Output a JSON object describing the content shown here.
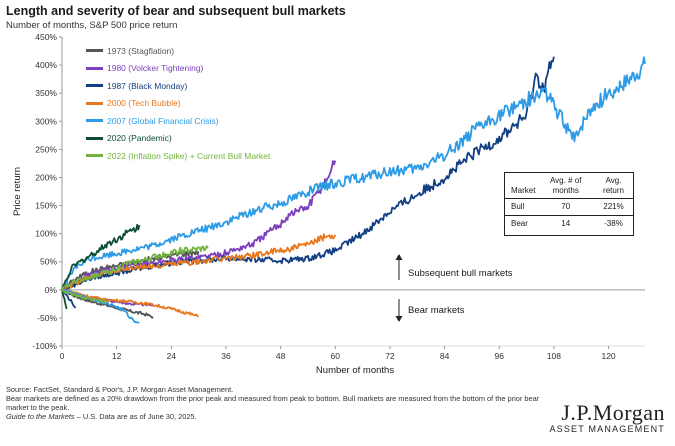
{
  "header": {
    "title": "Length and severity of bear and subsequent bull markets",
    "subtitle": "Number of months, S&P 500 price return"
  },
  "chart_data": {
    "type": "line",
    "title": "Length and severity of bear and subsequent bull markets",
    "xlabel": "Number of months",
    "ylabel": "Price return",
    "xlim": [
      0,
      128
    ],
    "ylim": [
      -100,
      450
    ],
    "xticks": [
      0,
      12,
      24,
      36,
      48,
      60,
      72,
      84,
      96,
      108,
      120
    ],
    "yticks": [
      -100,
      -50,
      0,
      50,
      100,
      150,
      200,
      250,
      300,
      350,
      400,
      450
    ],
    "ytick_labels": [
      "-100%",
      "-50%",
      "0%",
      "50%",
      "100%",
      "150%",
      "200%",
      "250%",
      "300%",
      "350%",
      "400%",
      "450%"
    ],
    "series": [
      {
        "name": "1973 (Stagflation)",
        "color": "#555555",
        "bear": [
          [
            0,
            0
          ],
          [
            3,
            -12
          ],
          [
            6,
            -20
          ],
          [
            9,
            -26
          ],
          [
            12,
            -32
          ],
          [
            15,
            -38
          ],
          [
            18,
            -43
          ],
          [
            20,
            -48
          ]
        ],
        "bull": [
          [
            0,
            0
          ],
          [
            3,
            20
          ],
          [
            6,
            32
          ],
          [
            10,
            40
          ],
          [
            14,
            46
          ],
          [
            18,
            52
          ],
          [
            22,
            58
          ],
          [
            26,
            64
          ],
          [
            30,
            68
          ]
        ]
      },
      {
        "name": "1980 (Volcker Tightening)",
        "color": "#7b3fbf",
        "bear": [
          [
            0,
            0
          ],
          [
            3,
            -8
          ],
          [
            6,
            -14
          ],
          [
            9,
            -18
          ],
          [
            12,
            -21
          ],
          [
            15,
            -25
          ],
          [
            20,
            -27
          ]
        ],
        "bull": [
          [
            0,
            0
          ],
          [
            6,
            28
          ],
          [
            12,
            38
          ],
          [
            18,
            46
          ],
          [
            24,
            52
          ],
          [
            30,
            58
          ],
          [
            36,
            66
          ],
          [
            42,
            82
          ],
          [
            48,
            118
          ],
          [
            50,
            135
          ],
          [
            54,
            148
          ],
          [
            58,
            195
          ],
          [
            60,
            230
          ]
        ]
      },
      {
        "name": "1987 (Black Monday)",
        "color": "#123f82",
        "bear": [
          [
            0,
            0
          ],
          [
            1,
            -10
          ],
          [
            2,
            -20
          ],
          [
            3,
            -32
          ]
        ],
        "bull": [
          [
            0,
            0
          ],
          [
            6,
            20
          ],
          [
            12,
            30
          ],
          [
            18,
            40
          ],
          [
            24,
            48
          ],
          [
            30,
            52
          ],
          [
            36,
            56
          ],
          [
            42,
            54
          ],
          [
            48,
            52
          ],
          [
            54,
            56
          ],
          [
            60,
            70
          ],
          [
            66,
            100
          ],
          [
            72,
            140
          ],
          [
            78,
            170
          ],
          [
            84,
            200
          ],
          [
            90,
            240
          ],
          [
            96,
            270
          ],
          [
            102,
            310
          ],
          [
            104,
            380
          ],
          [
            106,
            360
          ],
          [
            107,
            395
          ],
          [
            108,
            415
          ]
        ]
      },
      {
        "name": "2000 (Tech Bubble)",
        "color": "#e8781e",
        "bear": [
          [
            0,
            0
          ],
          [
            3,
            -5
          ],
          [
            6,
            -12
          ],
          [
            10,
            -18
          ],
          [
            14,
            -20
          ],
          [
            18,
            -24
          ],
          [
            22,
            -30
          ],
          [
            26,
            -38
          ],
          [
            29,
            -45
          ],
          [
            30,
            -48
          ]
        ],
        "bull": [
          [
            0,
            0
          ],
          [
            4,
            15
          ],
          [
            8,
            28
          ],
          [
            12,
            34
          ],
          [
            16,
            40
          ],
          [
            20,
            42
          ],
          [
            24,
            46
          ],
          [
            30,
            50
          ],
          [
            36,
            56
          ],
          [
            42,
            62
          ],
          [
            48,
            70
          ],
          [
            54,
            80
          ],
          [
            58,
            95
          ],
          [
            60,
            98
          ]
        ]
      },
      {
        "name": "2007 (Global Financial Crisis)",
        "color": "#2e9be6",
        "bear": [
          [
            0,
            0
          ],
          [
            3,
            -8
          ],
          [
            6,
            -15
          ],
          [
            9,
            -22
          ],
          [
            12,
            -30
          ],
          [
            14,
            -40
          ],
          [
            15,
            -50
          ],
          [
            16,
            -55
          ],
          [
            17,
            -58
          ]
        ],
        "bull": [
          [
            0,
            0
          ],
          [
            3,
            40
          ],
          [
            6,
            55
          ],
          [
            12,
            65
          ],
          [
            16,
            72
          ],
          [
            20,
            78
          ],
          [
            24,
            90
          ],
          [
            28,
            100
          ],
          [
            32,
            110
          ],
          [
            36,
            120
          ],
          [
            42,
            140
          ],
          [
            48,
            155
          ],
          [
            54,
            175
          ],
          [
            60,
            190
          ],
          [
            66,
            200
          ],
          [
            72,
            210
          ],
          [
            78,
            215
          ],
          [
            84,
            240
          ],
          [
            90,
            280
          ],
          [
            96,
            310
          ],
          [
            100,
            330
          ],
          [
            104,
            345
          ],
          [
            106,
            355
          ],
          [
            110,
            300
          ],
          [
            112,
            270
          ],
          [
            114,
            290
          ],
          [
            116,
            320
          ],
          [
            120,
            350
          ],
          [
            124,
            370
          ],
          [
            127,
            390
          ],
          [
            128,
            402
          ]
        ]
      },
      {
        "name": "2020 (Pandemic)",
        "color": "#0f4d33",
        "bear": [
          [
            0,
            0
          ],
          [
            0.5,
            -15
          ],
          [
            1,
            -34
          ]
        ],
        "bull": [
          [
            0,
            0
          ],
          [
            2,
            38
          ],
          [
            4,
            50
          ],
          [
            6,
            60
          ],
          [
            8,
            70
          ],
          [
            10,
            82
          ],
          [
            12,
            90
          ],
          [
            14,
            100
          ],
          [
            16,
            108
          ],
          [
            17,
            115
          ]
        ]
      },
      {
        "name": "2022 (Inflation Spike) + Current Bull Market",
        "color": "#74b43e",
        "bear": [
          [
            0,
            0
          ],
          [
            1,
            -5
          ],
          [
            3,
            -10
          ],
          [
            5,
            -15
          ],
          [
            7,
            -18
          ],
          [
            9,
            -20
          ],
          [
            9.5,
            -25
          ]
        ],
        "bull": [
          [
            0,
            0
          ],
          [
            2,
            12
          ],
          [
            4,
            18
          ],
          [
            6,
            22
          ],
          [
            8,
            28
          ],
          [
            10,
            32
          ],
          [
            12,
            38
          ],
          [
            14,
            45
          ],
          [
            16,
            50
          ],
          [
            18,
            52
          ],
          [
            20,
            58
          ],
          [
            22,
            62
          ],
          [
            24,
            66
          ],
          [
            26,
            70
          ],
          [
            28,
            70
          ],
          [
            30,
            72
          ],
          [
            32,
            74
          ]
        ]
      }
    ],
    "annotations": [
      "Subsequent bull markets",
      "Bear markets"
    ]
  },
  "stats_table": {
    "headers": [
      "Market",
      "Avg. # of months",
      "Avg. return"
    ],
    "rows": [
      {
        "market": "Bull",
        "months": "70",
        "return": "221%"
      },
      {
        "market": "Bear",
        "months": "14",
        "return": "-38%"
      }
    ]
  },
  "footer": {
    "source": "Source: FactSet, Standard & Poor's, J.P. Morgan Asset Management.",
    "note": "Bear markets are defined as a 20% drawdown from the prior peak and measured from peak to bottom. Bull markets are measured from the bottom of the prior bear market to the peak.",
    "gtm_italic": "Guide to the Markets",
    "gtm_rest": " – U.S. Data are as of June 30, 2025."
  },
  "logo": {
    "main": "J.P.Morgan",
    "sub": "ASSET MANAGEMENT"
  }
}
